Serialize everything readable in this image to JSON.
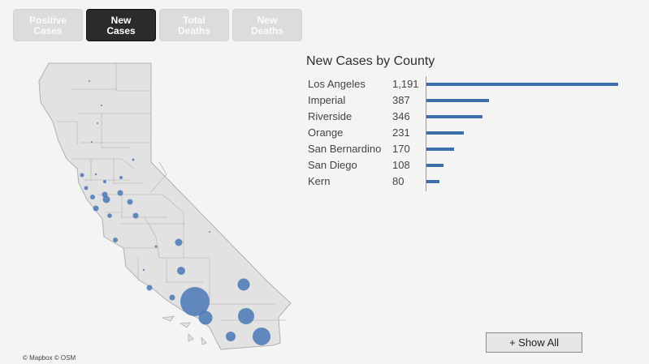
{
  "tabs": [
    {
      "label": "Positive\nCases",
      "active": false
    },
    {
      "label": "New\nCases",
      "active": true
    },
    {
      "label": "Total\nDeaths",
      "active": false
    },
    {
      "label": "New\nDeaths",
      "active": false
    }
  ],
  "map": {
    "attribution": "© Mapbox © OSM",
    "bubble_color": "#4a78b5",
    "county_fill": "#e2e2e2",
    "county_stroke": "#b4b4b4"
  },
  "chart_data": {
    "type": "bar",
    "title": "New Cases by County",
    "categories": [
      "Los Angeles",
      "Imperial",
      "Riverside",
      "Orange",
      "San Bernardino",
      "San Diego",
      "Kern"
    ],
    "values": [
      1191,
      387,
      346,
      231,
      170,
      108,
      80
    ],
    "value_labels": [
      "1,191",
      "387",
      "346",
      "231",
      "170",
      "108",
      "80"
    ],
    "color": "#3d6fa8"
  },
  "show_all_label": "+ Show All"
}
